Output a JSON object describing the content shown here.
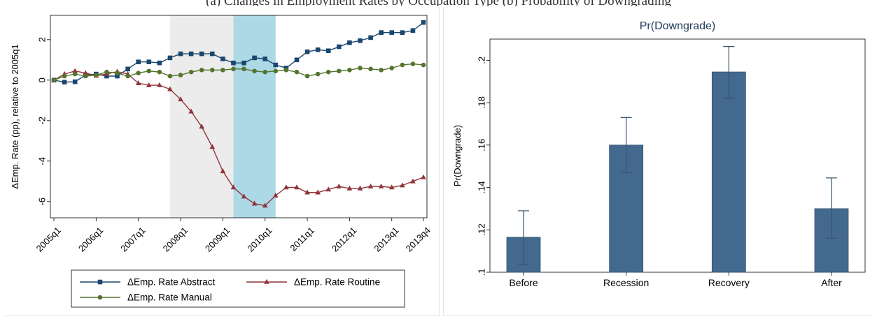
{
  "caption": "(a) Changes in Employment Rates by Occupation Type          (b) Probability of Downgrading",
  "chart_data": [
    {
      "type": "line",
      "title": "",
      "xlabel": "",
      "ylabel": "ΔEmp. Rate (pp), relative to 2005q1",
      "x": [
        "2005q1",
        "2005q2",
        "2005q3",
        "2005q4",
        "2006q1",
        "2006q2",
        "2006q3",
        "2006q4",
        "2007q1",
        "2007q2",
        "2007q3",
        "2007q4",
        "2008q1",
        "2008q2",
        "2008q3",
        "2008q4",
        "2009q1",
        "2009q2",
        "2009q3",
        "2009q4",
        "2010q1",
        "2010q2",
        "2010q3",
        "2010q4",
        "2011q1",
        "2011q2",
        "2011q3",
        "2011q4",
        "2012q1",
        "2012q2",
        "2012q3",
        "2012q4",
        "2013q1",
        "2013q2",
        "2013q3",
        "2013q4"
      ],
      "xticks": [
        "2005q1",
        "2006q1",
        "2007q1",
        "2008q1",
        "2009q1",
        "2010q1",
        "2011q1",
        "2012q1",
        "2013q1",
        "2013q4"
      ],
      "yticks": [
        2,
        0,
        -2,
        -4,
        -6
      ],
      "ylim": [
        -6.8,
        3.2
      ],
      "shaded": [
        {
          "from": "2007q4",
          "to": "2009q2",
          "color": "#ececec"
        },
        {
          "from": "2009q2",
          "to": "2010q2",
          "color": "#add8e6"
        }
      ],
      "series": [
        {
          "name": "ΔEmp. Rate Abstract",
          "color": "#1a476f",
          "marker": "square",
          "values": [
            0,
            -0.1,
            -0.08,
            0.25,
            0.3,
            0.2,
            0.2,
            0.55,
            0.9,
            0.9,
            0.85,
            1.1,
            1.3,
            1.3,
            1.3,
            1.3,
            1.05,
            0.85,
            0.85,
            1.1,
            1.05,
            0.75,
            0.6,
            1.0,
            1.4,
            1.5,
            1.45,
            1.65,
            1.85,
            1.95,
            2.1,
            2.35,
            2.35,
            2.35,
            2.45,
            2.85
          ]
        },
        {
          "name": "ΔEmp. Rate Routine",
          "color": "#90353b",
          "marker": "triangle",
          "values": [
            0,
            0.3,
            0.45,
            0.35,
            0.22,
            0.3,
            0.42,
            0.3,
            -0.15,
            -0.25,
            -0.25,
            -0.45,
            -0.95,
            -1.55,
            -2.3,
            -3.3,
            -4.5,
            -5.3,
            -5.75,
            -6.1,
            -6.2,
            -5.7,
            -5.3,
            -5.3,
            -5.55,
            -5.55,
            -5.4,
            -5.25,
            -5.35,
            -5.35,
            -5.25,
            -5.25,
            -5.3,
            -5.2,
            -5.0,
            -4.8
          ]
        },
        {
          "name": "ΔEmp. Rate Manual",
          "color": "#55752f",
          "marker": "circle",
          "values": [
            0,
            0.2,
            0.3,
            0.2,
            0.25,
            0.4,
            0.35,
            0.2,
            0.35,
            0.45,
            0.4,
            0.2,
            0.25,
            0.4,
            0.5,
            0.5,
            0.5,
            0.55,
            0.55,
            0.45,
            0.4,
            0.45,
            0.5,
            0.4,
            0.2,
            0.3,
            0.4,
            0.45,
            0.5,
            0.6,
            0.55,
            0.5,
            0.6,
            0.75,
            0.8,
            0.75
          ]
        }
      ],
      "legend": {
        "position": "bottom",
        "entries": [
          "ΔEmp. Rate Abstract",
          "ΔEmp. Rate Routine",
          "ΔEmp. Rate Manual"
        ]
      }
    },
    {
      "type": "bar",
      "title": "Pr(Downgrade)",
      "xlabel": "",
      "ylabel": "Pr(Downgrade)",
      "categories": [
        "Before",
        "Recession",
        "Recovery",
        "After"
      ],
      "values": [
        0.1165,
        0.16,
        0.1945,
        0.13
      ],
      "ci_low": [
        0.1035,
        0.147,
        0.182,
        0.116
      ],
      "ci_high": [
        0.129,
        0.173,
        0.2065,
        0.1445
      ],
      "yticks": [
        0.1,
        0.12,
        0.14,
        0.16,
        0.18,
        0.2
      ],
      "ytick_labels": [
        ".1",
        ".12",
        ".14",
        ".16",
        ".18",
        ".2"
      ],
      "ylim": [
        0.1,
        0.21
      ],
      "bar_color": "#44698e",
      "grid": false
    }
  ]
}
